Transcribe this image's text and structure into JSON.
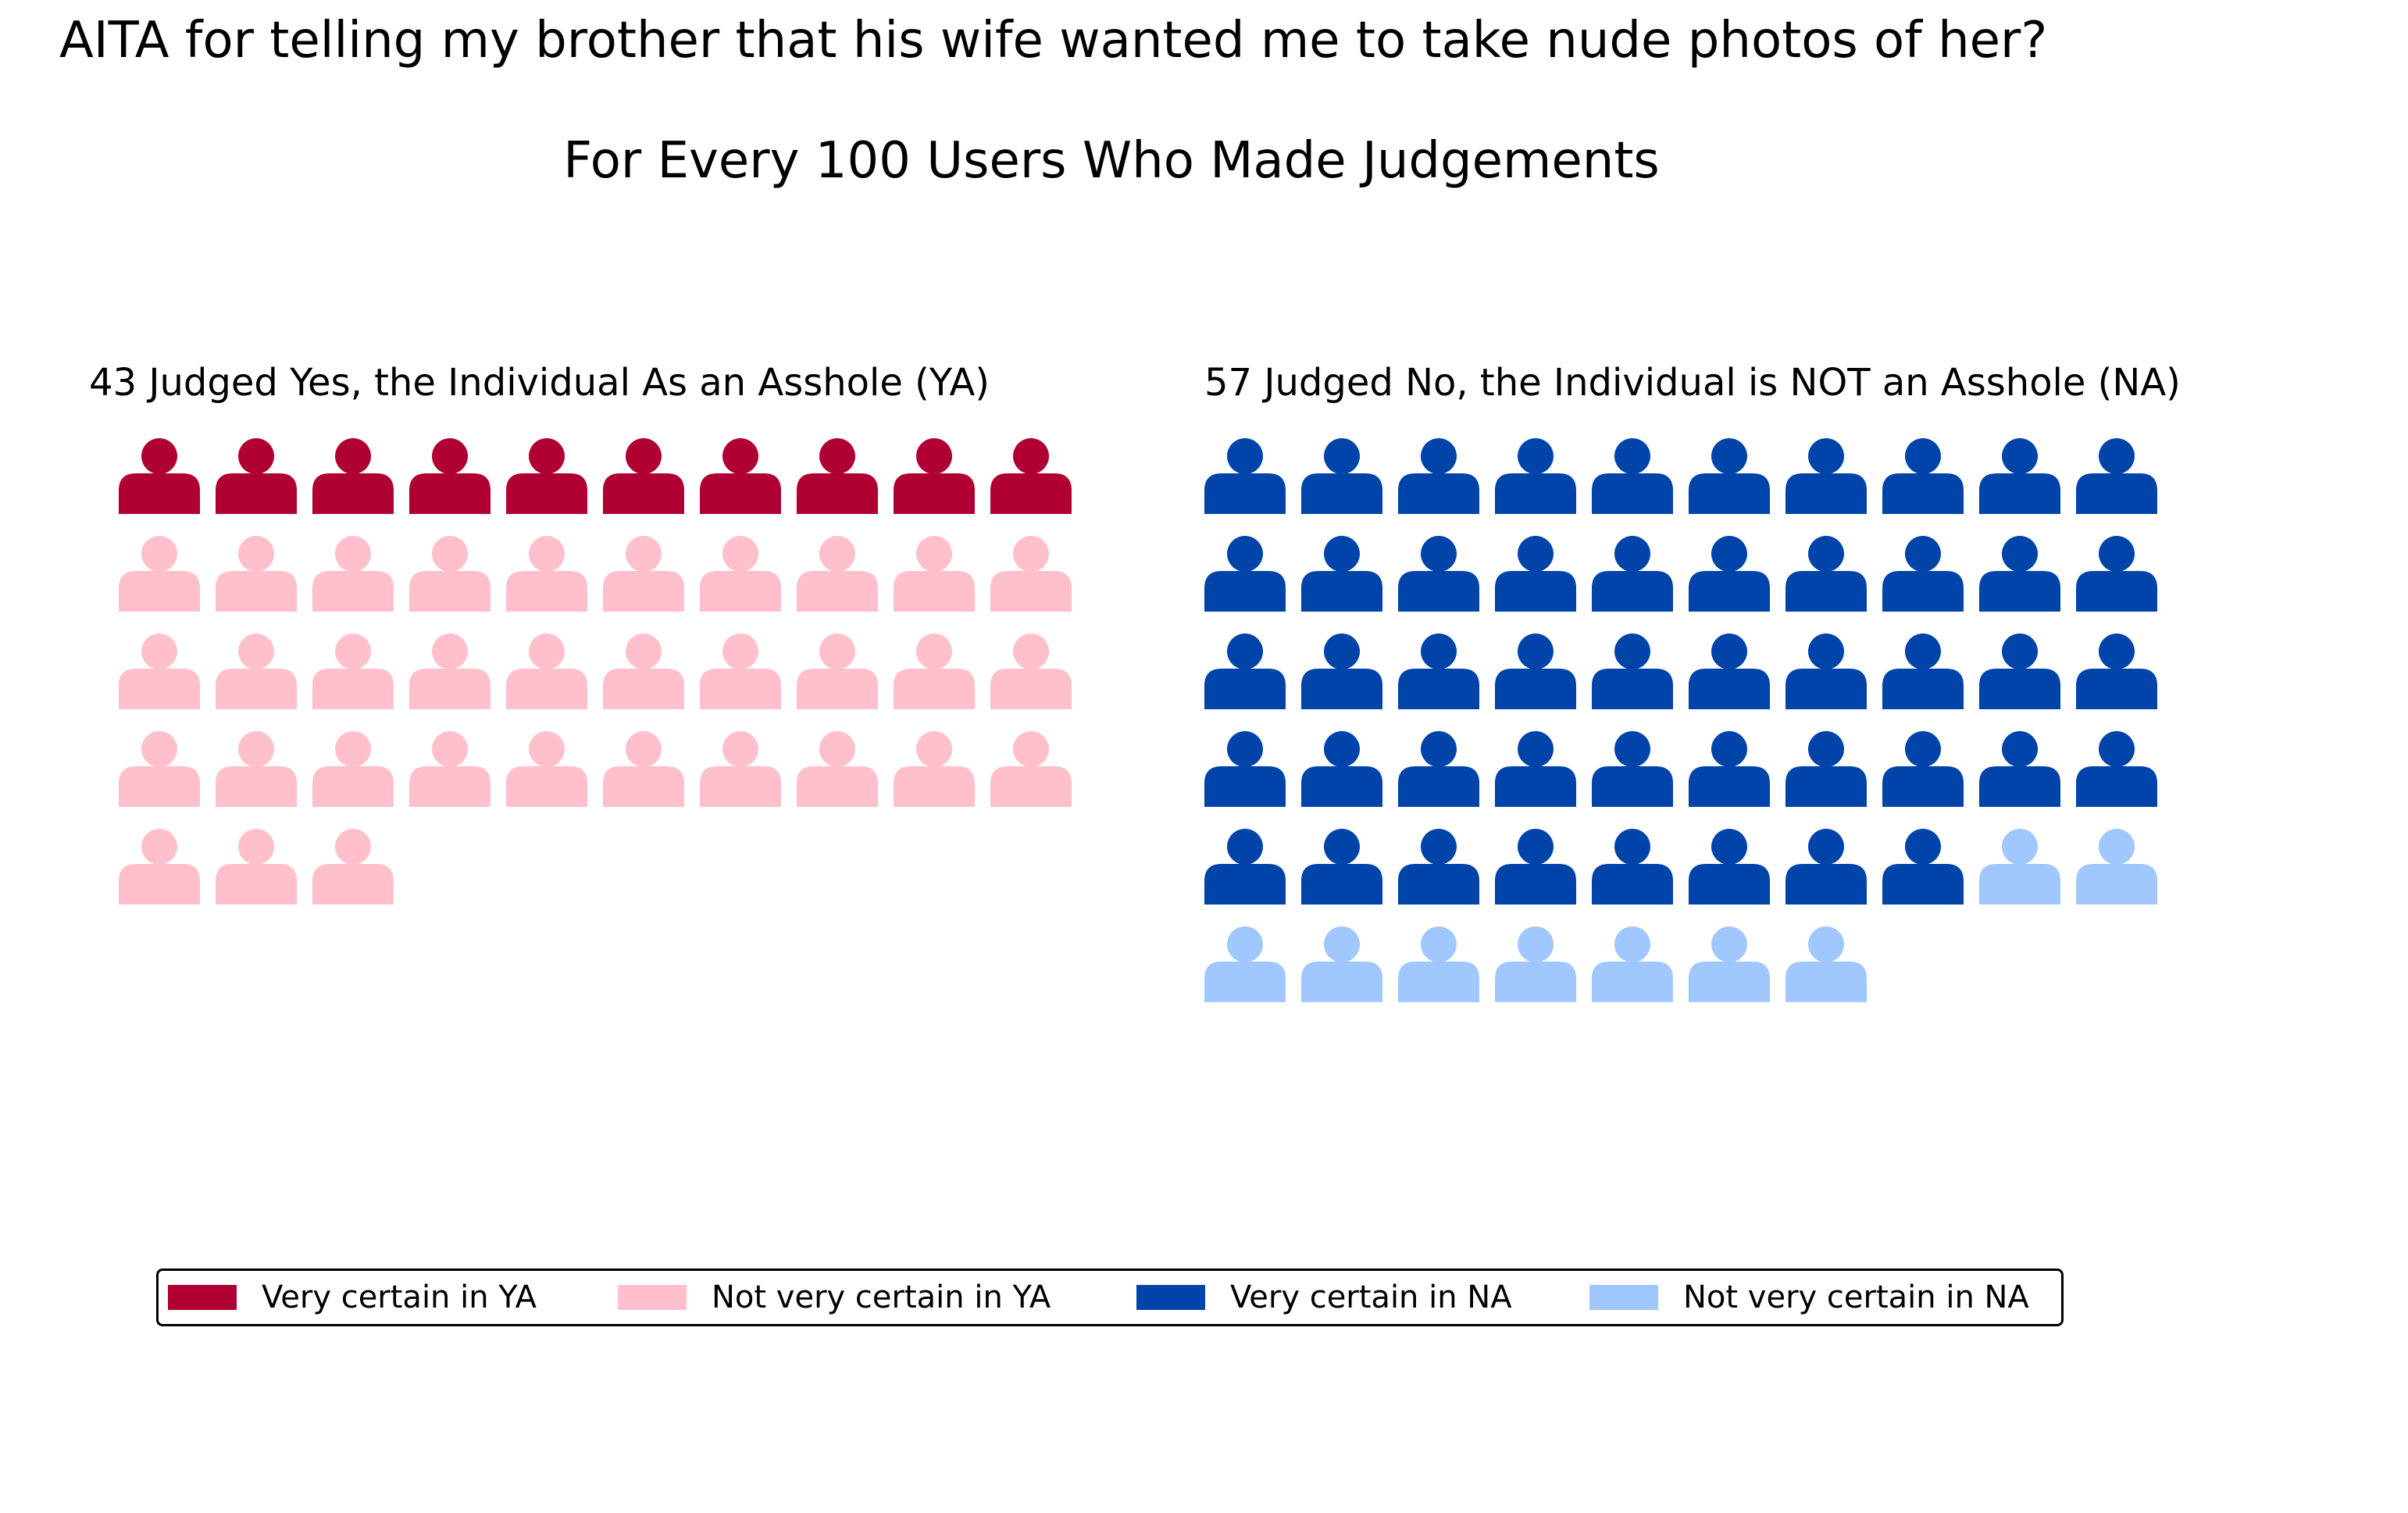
{
  "chart_data": {
    "type": "pictogram",
    "title": "AITA for telling my brother that his wife wanted me to take nude photos of her?",
    "subtitle": "For Every 100 Users Who Made Judgements",
    "icons_per_row": 10,
    "icon_name": "person-icon",
    "panels": [
      {
        "title": "43 Judged Yes, the Individual As an Asshole (YA)",
        "total": 43,
        "segments": [
          {
            "label": "Very certain in YA",
            "count": 10,
            "color": "#b00033"
          },
          {
            "label": "Not very certain in YA",
            "count": 33,
            "color": "#ffc0cb"
          }
        ]
      },
      {
        "title": "57 Judged No, the Individual is NOT an Asshole (NA)",
        "total": 57,
        "segments": [
          {
            "label": "Very certain in NA",
            "count": 48,
            "color": "#0044aa"
          },
          {
            "label": "Not very certain in NA",
            "count": 9,
            "color": "#a0c8ff"
          }
        ]
      }
    ],
    "legend": {
      "placement": "bottom",
      "entries": [
        {
          "label": "Very certain in YA",
          "color": "#b00033"
        },
        {
          "label": "Not very certain in YA",
          "color": "#ffc0cb"
        },
        {
          "label": "Very certain in NA",
          "color": "#0044aa"
        },
        {
          "label": "Not very certain in NA",
          "color": "#a0c8ff"
        }
      ]
    }
  }
}
